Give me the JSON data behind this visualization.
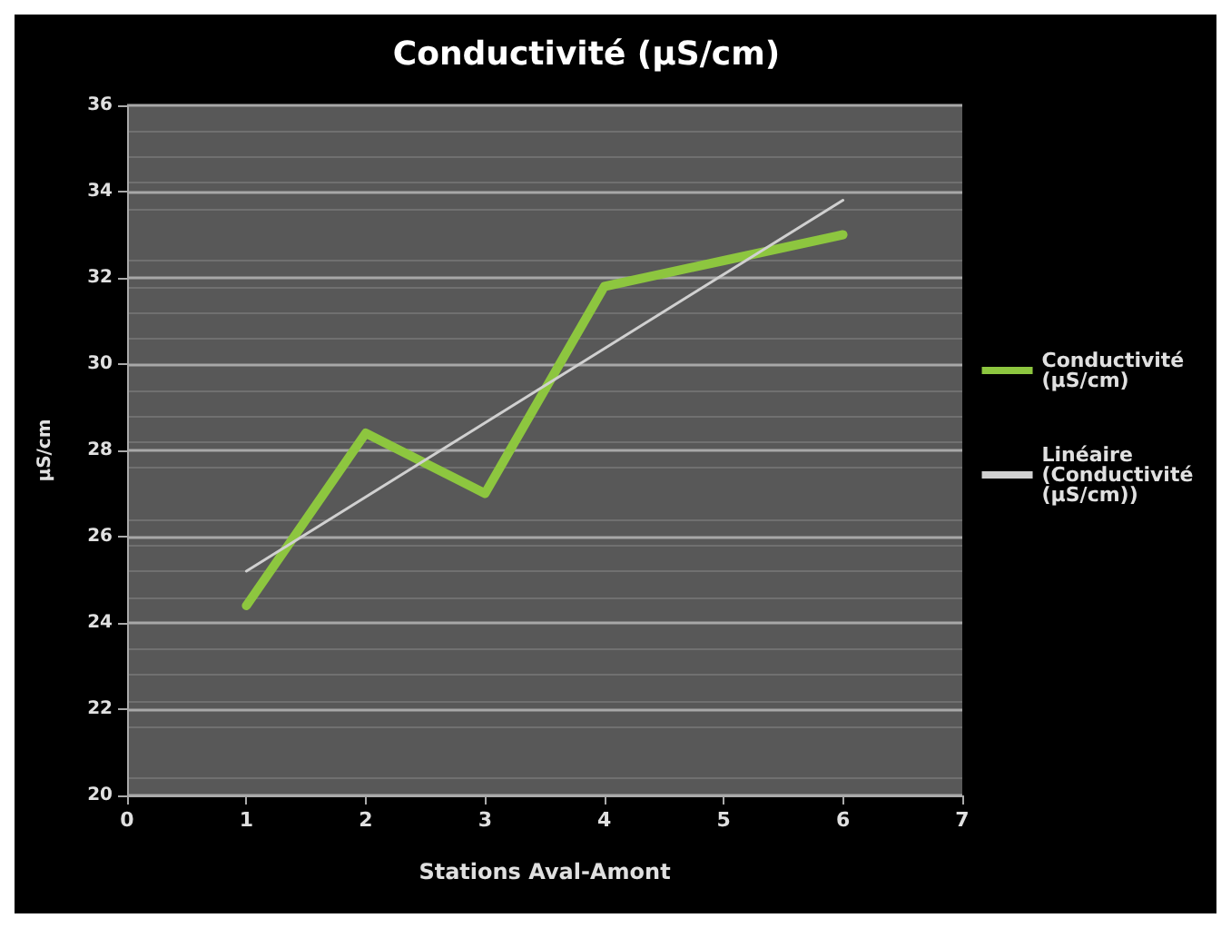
{
  "chart_data": {
    "type": "line",
    "title": "Conductivité (µS/cm)",
    "xlabel": "Stations Aval-Amont",
    "ylabel": "µS/cm",
    "x": [
      1,
      2,
      3,
      4,
      5,
      6
    ],
    "series": [
      {
        "name": "Conductivité (µS/cm)",
        "color": "#8dc63f",
        "values": [
          24.4,
          28.4,
          27.0,
          31.8,
          32.4,
          33.0
        ]
      },
      {
        "name": "Linéaire (Conductivité (µS/cm))",
        "color": "#d0d0d0",
        "x": [
          1,
          6
        ],
        "values": [
          25.2,
          33.8
        ]
      }
    ],
    "xlim": [
      0,
      7
    ],
    "xticks": [
      0,
      1,
      2,
      3,
      4,
      5,
      6,
      7
    ],
    "ylim": [
      20,
      36
    ],
    "yticks": [
      20,
      22,
      24,
      26,
      28,
      30,
      32,
      34,
      36
    ],
    "grid": "y",
    "legend": "right",
    "marker": "none",
    "line_style": "solid"
  }
}
